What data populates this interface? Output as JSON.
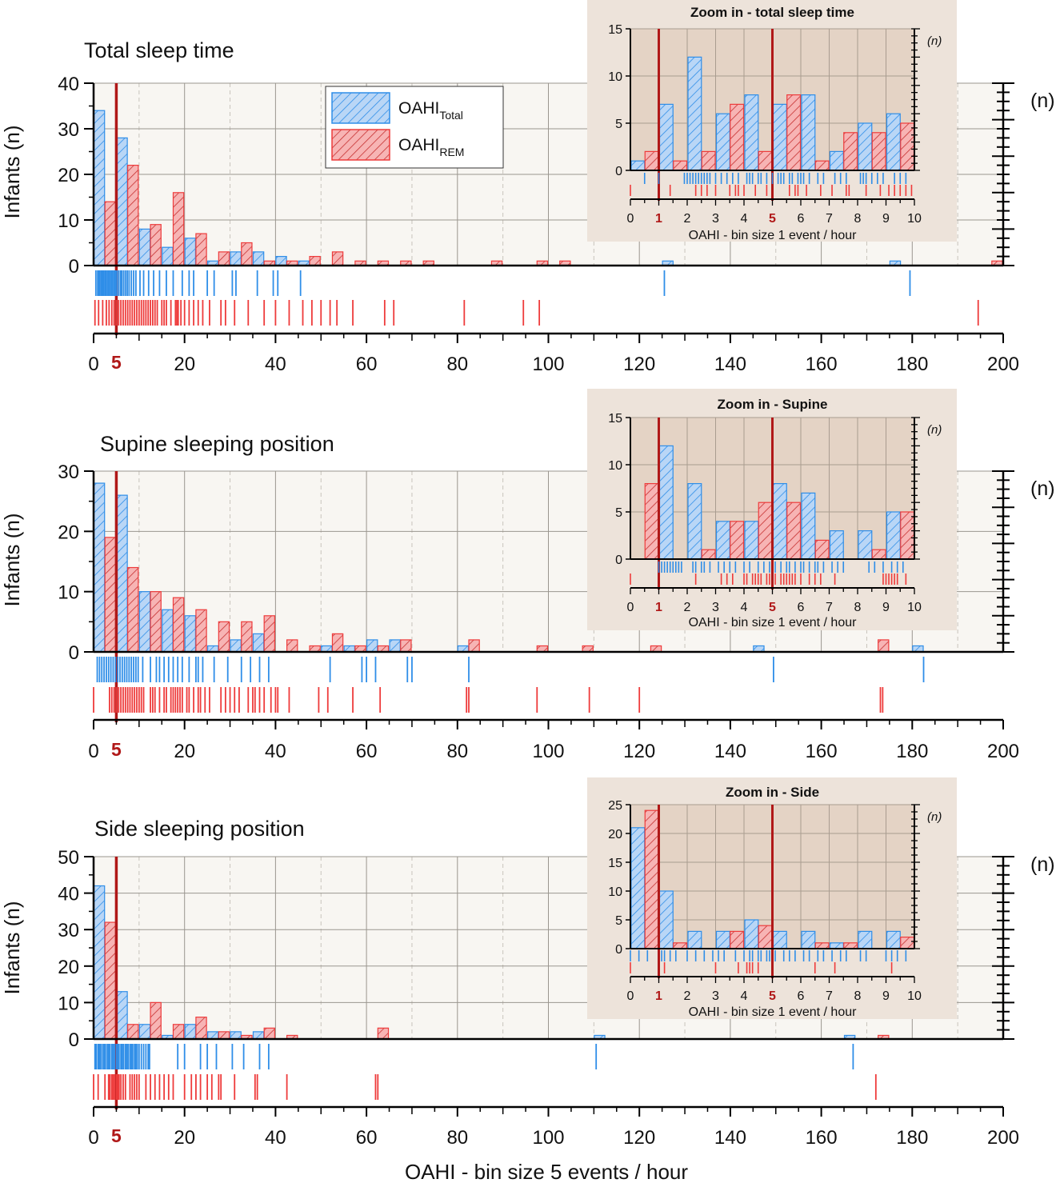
{
  "figure": {
    "xlabel": "OAHI - bin size 5 events / hour",
    "ylabel": "Infants (n)",
    "right_label": "(n)",
    "legend": [
      {
        "label": "OAHI",
        "sub": "Total",
        "color": "#2f8ee8"
      },
      {
        "label": "OAHI",
        "sub": "REM",
        "color": "#ee3b3b"
      }
    ],
    "colors": {
      "blue": "#2f8ee8",
      "blue_fill": "#b9d6f6",
      "red": "#ee3b3b",
      "red_fill": "#f7b4b4",
      "threshold": "#b01818",
      "inset_bg": "#ede3da",
      "plot_bg": "#f8f6f2"
    }
  },
  "chart_data": [
    {
      "type": "bar",
      "title": "Total sleep time",
      "xlabel": "OAHI - bin size 5 events / hour",
      "ylabel": "Infants (n)",
      "xlim": [
        0,
        200
      ],
      "ylim": [
        0,
        40
      ],
      "yticks": [
        0,
        10,
        20,
        30,
        40
      ],
      "xticks": [
        0,
        20,
        40,
        60,
        80,
        100,
        120,
        140,
        160,
        180,
        200
      ],
      "threshold": 5,
      "bin_size": 5,
      "series": [
        {
          "name": "OAHI Total",
          "bins": [
            0,
            5,
            10,
            15,
            20,
            25,
            30,
            35,
            40,
            45,
            125,
            175
          ],
          "values": [
            34,
            28,
            8,
            4,
            6,
            1,
            3,
            3,
            2,
            1,
            1,
            1
          ]
        },
        {
          "name": "OAHI REM",
          "bins": [
            0,
            5,
            10,
            15,
            20,
            25,
            30,
            35,
            40,
            45,
            50,
            55,
            60,
            65,
            70,
            85,
            95,
            100,
            195
          ],
          "values": [
            14,
            22,
            9,
            16,
            7,
            3,
            5,
            1,
            1,
            2,
            3,
            1,
            1,
            1,
            1,
            1,
            1,
            1,
            1
          ]
        }
      ],
      "rug": {
        "total": [
          0.5,
          0.9,
          1.2,
          1.4,
          1.7,
          2.0,
          2.2,
          2.5,
          2.7,
          3.0,
          3.3,
          3.6,
          3.9,
          4.2,
          4.5,
          4.8,
          5.1,
          5.5,
          5.9,
          6.2,
          6.6,
          7.0,
          7.4,
          7.8,
          8.3,
          8.8,
          9.3,
          10.2,
          11.0,
          12.1,
          13.2,
          14.5,
          16,
          17.5,
          19.5,
          21,
          22,
          25,
          26.5,
          30.5,
          31.3,
          36,
          39.5,
          40.5,
          45.5,
          125.5,
          179.5
        ],
        "rem": [
          0.3,
          1.1,
          2.0,
          2.8,
          3.4,
          4.0,
          4.5,
          5.0,
          5.5,
          6.0,
          6.5,
          7.0,
          7.5,
          8.0,
          8.5,
          9.0,
          9.5,
          10.0,
          10.5,
          11.0,
          11.5,
          12.0,
          12.5,
          13.0,
          13.5,
          14.0,
          15.0,
          15.5,
          16.0,
          17.0,
          18.0,
          18.3,
          18.6,
          19.2,
          20.0,
          21.0,
          22.0,
          23.0,
          24.0,
          25.5,
          28.0,
          29.0,
          31.0,
          34.0,
          37.5,
          40.0,
          43.0,
          46.0,
          48.0,
          50.0,
          52.0,
          53.5,
          57.0,
          64.0,
          66.0,
          81.5,
          94.5,
          98.0,
          194.5
        ]
      },
      "inset": {
        "title": "Zoom in - total sleep time",
        "xlabel": "OAHI - bin size 1 event / hour",
        "ylabel": "(n)",
        "xlim": [
          0,
          10
        ],
        "ylim": [
          0,
          15
        ],
        "yticks": [
          0,
          5,
          10,
          15
        ],
        "xticks": [
          0,
          1,
          2,
          3,
          4,
          5,
          6,
          7,
          8,
          9,
          10
        ],
        "markers": [
          1,
          5
        ],
        "total": [
          1,
          7,
          12,
          6,
          8,
          7,
          8,
          2,
          5,
          6
        ],
        "rem": [
          2,
          1,
          2,
          7,
          2,
          8,
          1,
          4,
          4,
          5
        ],
        "rug_total": [
          0.5,
          1.0,
          1.9,
          2.0,
          2.1,
          2.2,
          2.3,
          2.4,
          2.5,
          2.6,
          2.7,
          2.8,
          3.0,
          3.2,
          3.4,
          3.6,
          3.8,
          4.1,
          4.2,
          4.3,
          4.5,
          4.6,
          4.8,
          5.0,
          5.2,
          5.3,
          5.4,
          5.6,
          5.7,
          5.9,
          6.0,
          6.1,
          6.3,
          6.6,
          6.8,
          7.2,
          7.4,
          7.6,
          8.1,
          8.2,
          8.3,
          8.5,
          8.7,
          8.9,
          9.3,
          9.5,
          9.7
        ],
        "rug_rem": [
          0,
          1.4,
          2.3,
          2.5,
          2.7,
          3.0,
          3.5,
          3.7,
          3.8,
          4.0,
          4.4,
          4.8,
          5.6,
          5.8,
          5.9,
          6.2,
          6.7,
          7.1,
          7.6,
          7.7,
          8.3,
          8.8,
          9.1,
          9.3,
          9.5,
          9.7,
          9.9
        ]
      }
    },
    {
      "type": "bar",
      "title": "Supine sleeping position",
      "xlabel": "OAHI - bin size 5 events / hour",
      "ylabel": "Infants (n)",
      "xlim": [
        0,
        200
      ],
      "ylim": [
        0,
        30
      ],
      "yticks": [
        0,
        10,
        20,
        30
      ],
      "xticks": [
        0,
        20,
        40,
        60,
        80,
        100,
        120,
        140,
        160,
        180,
        200
      ],
      "threshold": 5,
      "bin_size": 5,
      "series": [
        {
          "name": "OAHI Total",
          "bins": [
            0,
            5,
            10,
            15,
            20,
            25,
            30,
            35,
            50,
            55,
            60,
            65,
            80,
            145,
            180
          ],
          "values": [
            28,
            26,
            10,
            7,
            6,
            1,
            2,
            3,
            1,
            1,
            2,
            2,
            1,
            1,
            1
          ]
        },
        {
          "name": "OAHI REM",
          "bins": [
            0,
            5,
            10,
            15,
            20,
            25,
            30,
            35,
            40,
            45,
            50,
            55,
            60,
            65,
            80,
            95,
            105,
            120,
            170
          ],
          "values": [
            19,
            14,
            10,
            9,
            7,
            5,
            5,
            6,
            2,
            1,
            3,
            1,
            1,
            2,
            2,
            1,
            1,
            1,
            2
          ]
        }
      ],
      "rug": {
        "total": [
          0.8,
          1.3,
          1.8,
          2.3,
          2.8,
          3.3,
          3.8,
          4.3,
          4.8,
          5.3,
          5.8,
          6.3,
          6.8,
          7.3,
          7.8,
          8.3,
          8.8,
          9.3,
          9.8,
          10.8,
          12.5,
          13.8,
          14.5,
          15.5,
          16.5,
          17.5,
          18.5,
          19.5,
          21.0,
          22.5,
          23.0,
          24.0,
          26.5,
          29.5,
          32.5,
          34.5,
          36.5,
          38.5,
          52.0,
          59.0,
          60.0,
          62.0,
          69.0,
          70.0,
          82.5,
          149.5,
          182.5
        ],
        "rem": [
          0,
          3.5,
          4.0,
          4.5,
          5.0,
          5.5,
          6.0,
          6.5,
          7.0,
          7.5,
          8.0,
          8.5,
          9.0,
          9.5,
          10.0,
          10.5,
          11.0,
          12.5,
          13.0,
          13.5,
          14.5,
          15.5,
          16.0,
          17.0,
          17.5,
          18.0,
          18.5,
          19.0,
          19.5,
          20.5,
          21.0,
          22.0,
          23.0,
          23.5,
          24.5,
          25.5,
          28.0,
          29.0,
          30.0,
          31.0,
          32.0,
          34.0,
          35.0,
          35.5,
          36.5,
          37.5,
          39.0,
          40.0,
          40.5,
          43.0,
          49.5,
          51.5,
          57.0,
          63.0,
          82.0,
          82.5,
          97.5,
          109.0,
          120.0,
          173.0,
          173.5
        ]
      },
      "inset": {
        "title": "Zoom in - Supine",
        "xlabel": "OAHI - bin size 1 event / hour",
        "ylabel": "(n)",
        "xlim": [
          0,
          10
        ],
        "ylim": [
          0,
          15
        ],
        "yticks": [
          0,
          5,
          10,
          15
        ],
        "xticks": [
          0,
          1,
          2,
          3,
          4,
          5,
          6,
          7,
          8,
          9,
          10
        ],
        "markers": [
          1,
          5
        ],
        "total": [
          0,
          12,
          8,
          4,
          4,
          8,
          7,
          3,
          3,
          5
        ],
        "rem": [
          8,
          0,
          1,
          4,
          6,
          6,
          2,
          0,
          1,
          5
        ],
        "rug_total": [
          1.0,
          1.1,
          1.2,
          1.3,
          1.4,
          1.5,
          1.6,
          1.7,
          1.8,
          2.2,
          2.3,
          2.5,
          2.6,
          2.8,
          3.1,
          3.3,
          3.5,
          3.7,
          4.0,
          4.2,
          4.5,
          4.7,
          4.9,
          5.1,
          5.3,
          5.5,
          5.6,
          5.8,
          6.0,
          6.1,
          6.3,
          6.5,
          6.6,
          6.8,
          7.1,
          7.3,
          7.5,
          8.4,
          8.6,
          8.9,
          9.2,
          9.4,
          9.6
        ],
        "rug_rem": [
          0,
          2.3,
          3.2,
          3.4,
          3.6,
          4.0,
          4.1,
          4.3,
          4.4,
          4.5,
          4.6,
          4.8,
          4.9,
          5.1,
          5.3,
          5.4,
          5.5,
          5.6,
          5.7,
          5.8,
          6.0,
          6.3,
          6.5,
          6.7,
          7.2,
          8.9,
          9.0,
          9.1,
          9.2,
          9.3,
          9.4,
          9.7
        ]
      }
    },
    {
      "type": "bar",
      "title": "Side sleeping position",
      "xlabel": "OAHI - bin size 5 events / hour",
      "ylabel": "Infants (n)",
      "xlim": [
        0,
        200
      ],
      "ylim": [
        0,
        50
      ],
      "yticks": [
        0,
        10,
        20,
        30,
        40,
        50
      ],
      "xticks": [
        0,
        20,
        40,
        60,
        80,
        100,
        120,
        140,
        160,
        180,
        200
      ],
      "threshold": 5,
      "bin_size": 5,
      "series": [
        {
          "name": "OAHI Total",
          "bins": [
            0,
            5,
            10,
            15,
            20,
            25,
            30,
            35,
            110,
            165
          ],
          "values": [
            42,
            13,
            4,
            1,
            4,
            2,
            2,
            2,
            1,
            1
          ]
        },
        {
          "name": "OAHI REM",
          "bins": [
            0,
            5,
            10,
            15,
            20,
            25,
            30,
            35,
            40,
            60,
            170
          ],
          "values": [
            32,
            4,
            10,
            4,
            6,
            2,
            1,
            3,
            1,
            3,
            1
          ]
        }
      ],
      "rug": {
        "total": [
          0.3,
          0.6,
          1.0,
          1.3,
          1.6,
          2.0,
          2.3,
          2.6,
          3.0,
          3.3,
          3.6,
          4.0,
          4.3,
          4.6,
          5.0,
          5.3,
          5.6,
          6.0,
          6.3,
          6.6,
          7.0,
          7.3,
          7.6,
          8.0,
          8.3,
          8.6,
          9.0,
          9.3,
          9.6,
          10.0,
          10.5,
          11.0,
          11.5,
          12.0,
          12.3,
          18.5,
          20.0,
          23.5,
          25.0,
          27.0,
          30.5,
          33.0,
          36.5,
          38.5,
          110.5,
          167.0
        ],
        "rem": [
          0,
          1.0,
          2.5,
          3.3,
          3.6,
          4.0,
          4.3,
          4.6,
          5.0,
          5.3,
          5.6,
          6.0,
          6.5,
          7.0,
          8.0,
          8.5,
          9.0,
          9.5,
          10.0,
          11.5,
          12.5,
          13.5,
          14.5,
          15.5,
          16.5,
          17.5,
          20.0,
          21.5,
          22.5,
          23.5,
          25.0,
          26.0,
          27.5,
          28.0,
          31.0,
          35.5,
          36.0,
          42.5,
          62.0,
          62.5,
          172.0
        ]
      },
      "inset": {
        "title": "Zoom in - Side",
        "xlabel": "OAHI - bin size 1 event / hour",
        "ylabel": "(n)",
        "xlim": [
          0,
          10
        ],
        "ylim": [
          0,
          25
        ],
        "yticks": [
          0,
          5,
          10,
          15,
          20,
          25
        ],
        "xticks": [
          0,
          1,
          2,
          3,
          4,
          5,
          6,
          7,
          8,
          9,
          10
        ],
        "markers": [
          1,
          5
        ],
        "total": [
          21,
          10,
          3,
          3,
          5,
          3,
          3,
          1,
          3,
          3
        ],
        "rem": [
          24,
          1,
          0,
          3,
          4,
          0,
          1,
          1,
          0,
          2
        ],
        "rug_total": [
          0.0,
          0.3,
          0.6,
          1.1,
          1.2,
          1.4,
          1.6,
          2.0,
          2.3,
          2.6,
          2.9,
          3.1,
          3.3,
          3.7,
          4.0,
          4.2,
          4.3,
          4.5,
          4.6,
          4.8,
          4.9,
          5.1,
          5.4,
          5.6,
          5.8,
          6.1,
          6.3,
          6.6,
          6.8,
          7.1,
          7.4,
          7.6,
          8.1,
          8.3,
          9.0,
          9.2,
          9.4,
          9.7
        ],
        "rug_rem": [
          0,
          1.2,
          3.0,
          3.8,
          4.1,
          4.2,
          4.3,
          4.5,
          6.5,
          7.2,
          9.2
        ]
      }
    }
  ]
}
